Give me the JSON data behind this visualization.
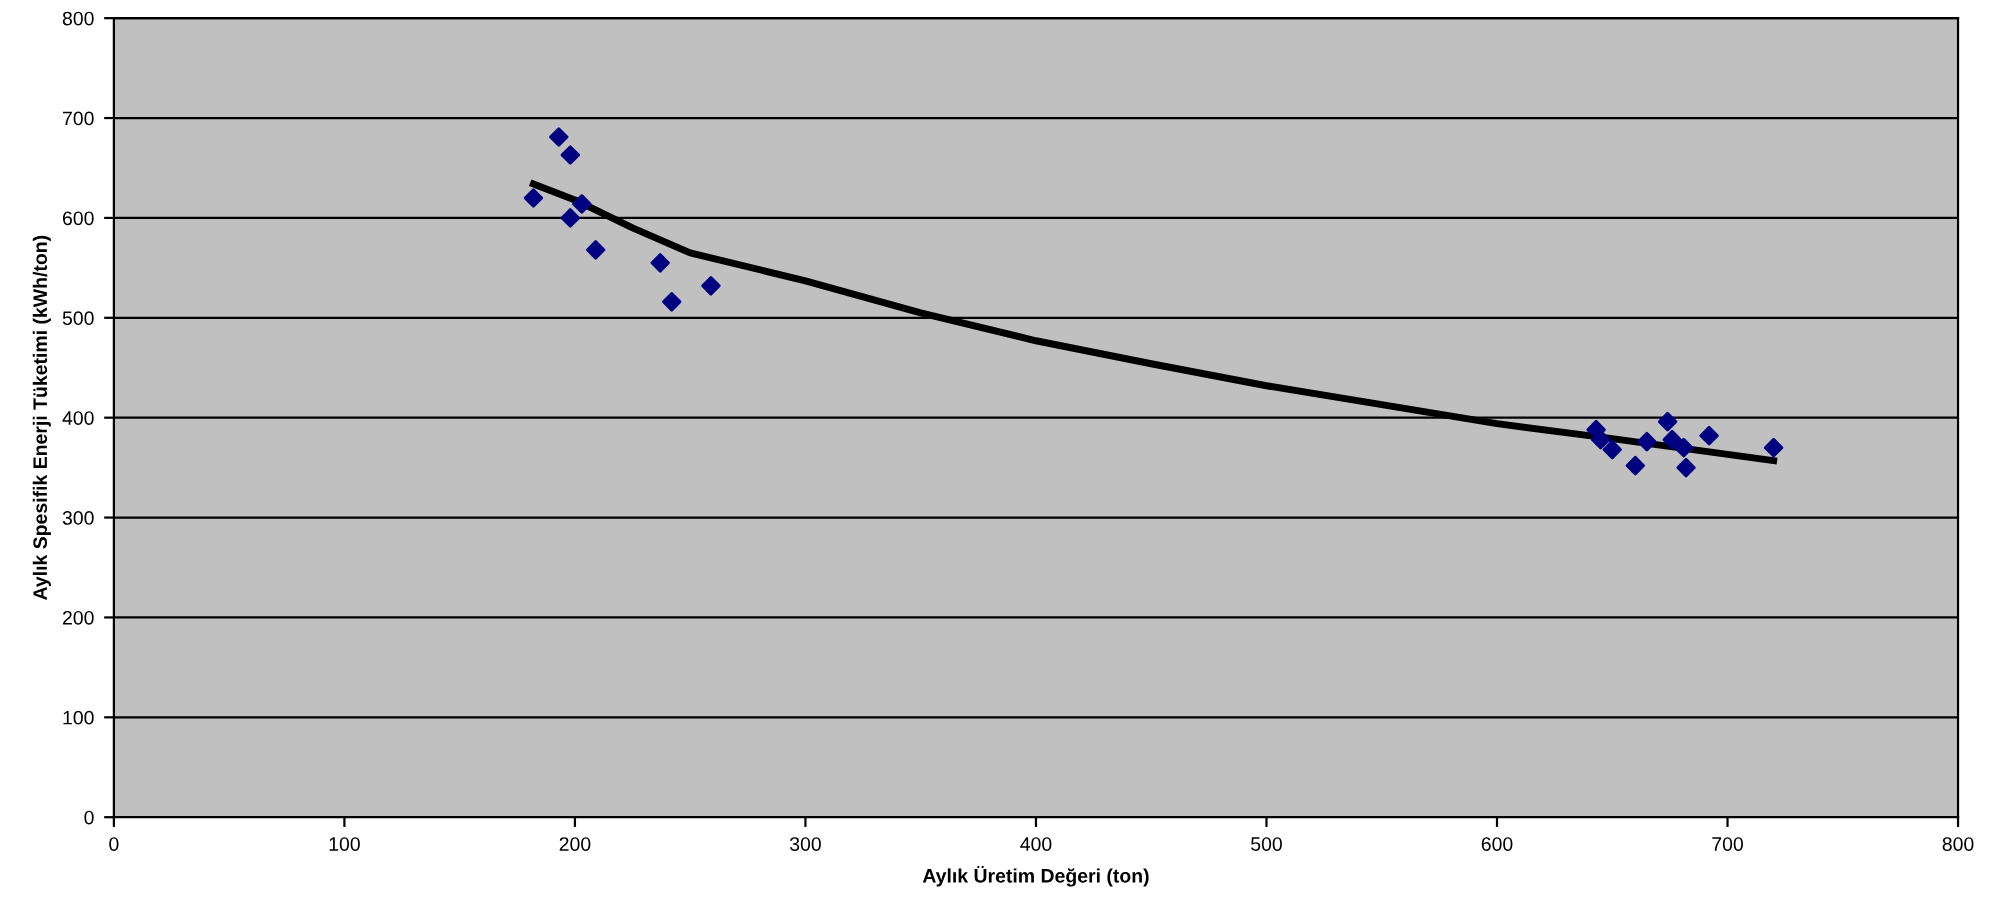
{
  "chart_data": {
    "type": "scatter",
    "xlabel": "Aylık Üretim Değeri (ton)",
    "ylabel": "Aylık Spesifik Enerji Tüketimi (kWh/ton)",
    "series": [
      {
        "color": "#000080",
        "marker": "diamond",
        "x": [
          182,
          193,
          198,
          198,
          203,
          209,
          237,
          242,
          259,
          643,
          645,
          650,
          660,
          665,
          674,
          676,
          681,
          682,
          692,
          720
        ],
        "values": [
          620,
          681,
          663,
          600,
          614,
          568,
          555,
          516,
          532,
          388,
          378,
          368,
          352,
          376,
          396,
          378,
          370,
          350,
          382,
          370
        ]
      },
      {
        "type": "line",
        "color": "#000000",
        "marker": "none",
        "x": [
          182,
          200,
          225,
          250,
          300,
          350,
          400,
          450,
          500,
          550,
          600,
          650,
          720
        ],
        "values": [
          634,
          618,
          590,
          565,
          537,
          505,
          477,
          454,
          432,
          413,
          394,
          379,
          357
        ]
      }
    ],
    "xlim": [
      0,
      800
    ],
    "ylim": [
      0,
      800
    ],
    "xticks": [
      0,
      100,
      200,
      300,
      400,
      500,
      600,
      700,
      800
    ],
    "yticks": [
      0,
      100,
      200,
      300,
      400,
      500,
      600,
      700,
      800
    ],
    "grid": "y",
    "legend": false
  }
}
